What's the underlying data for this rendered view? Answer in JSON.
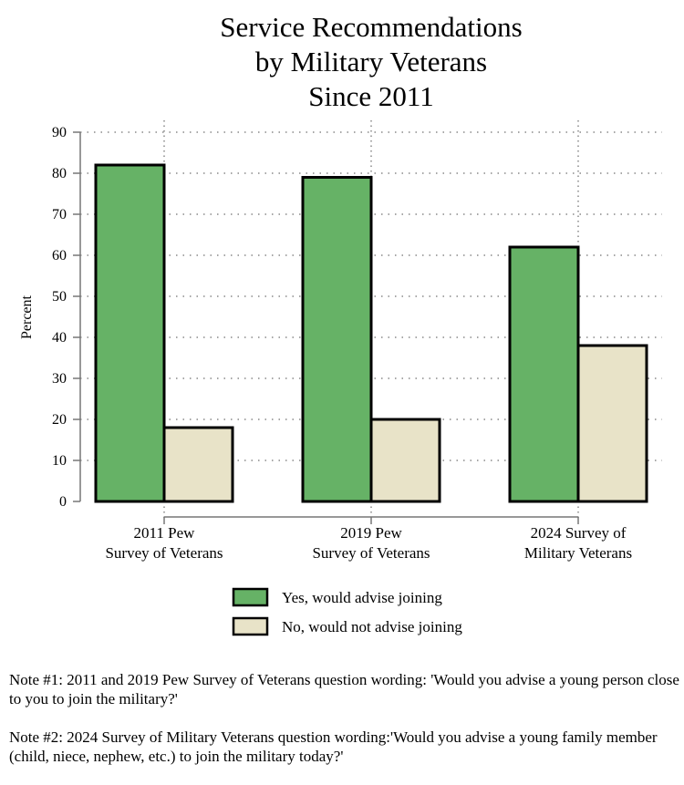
{
  "chart_data": {
    "type": "bar",
    "title_lines": [
      "Service Recommendations",
      "by Military Veterans",
      "Since 2011"
    ],
    "ylabel": "Percent",
    "ylim": [
      0,
      90
    ],
    "yticks": [
      0,
      10,
      20,
      30,
      40,
      50,
      60,
      70,
      80,
      90
    ],
    "categories": [
      [
        "2011 Pew",
        "Survey of Veterans"
      ],
      [
        "2019 Pew",
        "Survey of Veterans"
      ],
      [
        "2024 Survey of",
        "Military Veterans"
      ]
    ],
    "series": [
      {
        "name": "Yes, would advise joining",
        "color": "#66b266",
        "values": [
          82,
          79,
          62
        ]
      },
      {
        "name": "No, would not advise joining",
        "color": "#e8e3c8",
        "values": [
          18,
          20,
          38
        ]
      }
    ],
    "grid": "dotted"
  },
  "notes": [
    "Note #1: 2011 and 2019 Pew Survey of Veterans question wording: 'Would you advise a young person close to you to join the military?'",
    "Note #2: 2024 Survey of Military Veterans question wording:'Would you advise a young family member (child, niece, nephew, etc.) to join the military today?'"
  ]
}
